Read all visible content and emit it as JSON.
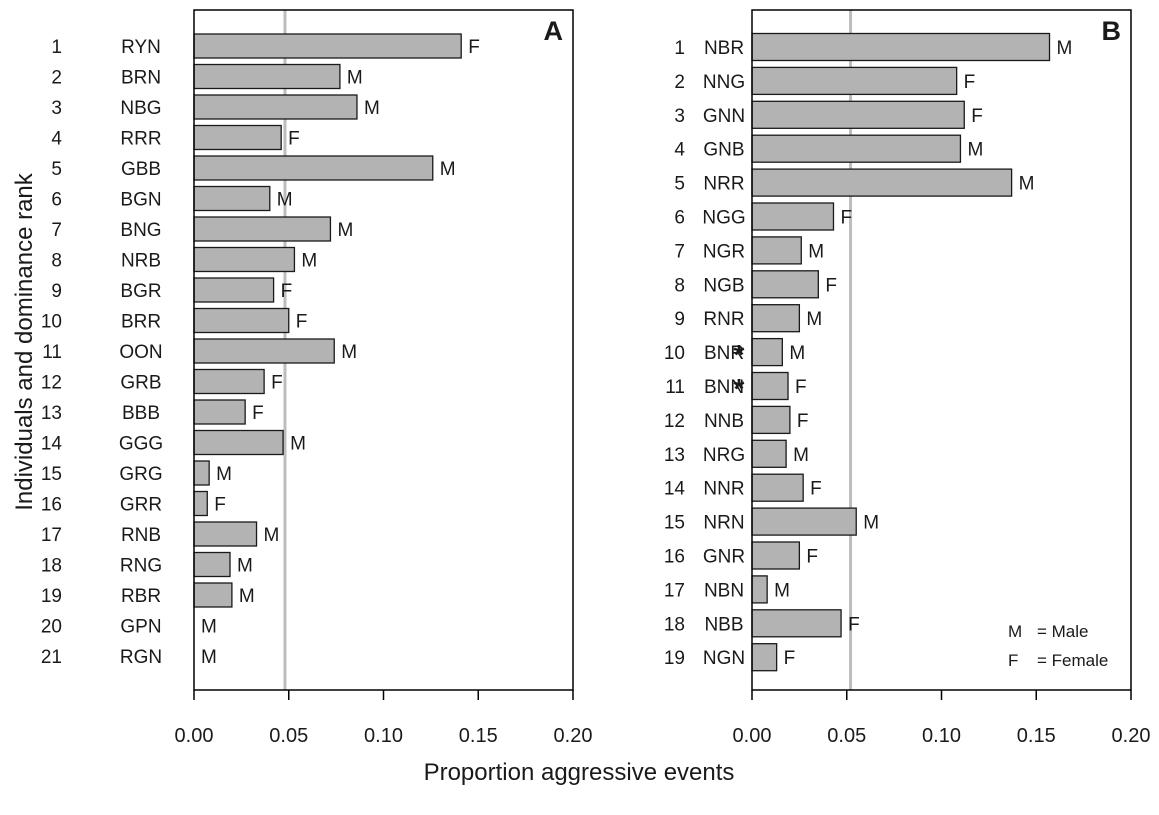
{
  "figure": {
    "ylabel": "Individuals and dominance rank",
    "xlabel": "Proportion aggressive events"
  },
  "colors": {
    "bar_fill": "#b3b3b3",
    "bar_stroke": "#1a1a1a",
    "reference_line": "#bdbdbd",
    "axis": "#000000"
  },
  "chart_data": [
    {
      "type": "bar",
      "orientation": "horizontal",
      "panel_label": "A",
      "xlim": [
        0,
        0.2
      ],
      "xticks": [
        "0.00",
        "0.05",
        "0.10",
        "0.15",
        "0.20"
      ],
      "grid": false,
      "reference_line": 0.048,
      "categories": [
        "1",
        "2",
        "3",
        "4",
        "5",
        "6",
        "7",
        "8",
        "9",
        "10",
        "11",
        "12",
        "13",
        "14",
        "15",
        "16",
        "17",
        "18",
        "19",
        "20",
        "21"
      ],
      "ids": [
        "RYN",
        "BRN",
        "NBG",
        "RRR",
        "GBB",
        "BGN",
        "BNG",
        "NRB",
        "BGR",
        "BRR",
        "OON",
        "GRB",
        "BBB",
        "GGG",
        "GRG",
        "GRR",
        "RNB",
        "RNG",
        "RBR",
        "GPN",
        "RGN"
      ],
      "values": [
        0.141,
        0.077,
        0.086,
        0.046,
        0.126,
        0.04,
        0.072,
        0.053,
        0.042,
        0.05,
        0.074,
        0.037,
        0.027,
        0.047,
        0.008,
        0.007,
        0.033,
        0.019,
        0.02,
        0.0,
        0.0
      ],
      "sex": [
        "F",
        "M",
        "M",
        "F",
        "M",
        "M",
        "M",
        "M",
        "F",
        "F",
        "M",
        "F",
        "F",
        "M",
        "M",
        "F",
        "M",
        "M",
        "M",
        "M",
        "M"
      ],
      "stars": [
        false,
        false,
        false,
        false,
        false,
        false,
        false,
        false,
        false,
        false,
        false,
        false,
        false,
        false,
        false,
        false,
        false,
        false,
        false,
        false,
        false
      ]
    },
    {
      "type": "bar",
      "orientation": "horizontal",
      "panel_label": "B",
      "xlim": [
        0,
        0.2
      ],
      "xticks": [
        "0.00",
        "0.05",
        "0.10",
        "0.15",
        "0.20"
      ],
      "grid": false,
      "reference_line": 0.052,
      "categories": [
        "1",
        "2",
        "3",
        "4",
        "5",
        "6",
        "7",
        "8",
        "9",
        "10",
        "11",
        "12",
        "13",
        "14",
        "15",
        "16",
        "17",
        "18",
        "19"
      ],
      "ids": [
        "NBR",
        "NNG",
        "GNN",
        "GNB",
        "NRR",
        "NGG",
        "NGR",
        "NGB",
        "RNR",
        "BNR",
        "BNN",
        "NNB",
        "NRG",
        "NNR",
        "NRN",
        "GNR",
        "NBN",
        "NBB",
        "NGN"
      ],
      "values": [
        0.157,
        0.108,
        0.112,
        0.11,
        0.137,
        0.043,
        0.026,
        0.035,
        0.025,
        0.016,
        0.019,
        0.02,
        0.018,
        0.027,
        0.055,
        0.025,
        0.008,
        0.047,
        0.013
      ],
      "sex": [
        "M",
        "F",
        "F",
        "M",
        "M",
        "F",
        "M",
        "F",
        "M",
        "M",
        "F",
        "F",
        "M",
        "F",
        "M",
        "F",
        "M",
        "F",
        "F"
      ],
      "stars": [
        false,
        false,
        false,
        false,
        false,
        false,
        false,
        false,
        false,
        true,
        true,
        false,
        false,
        false,
        false,
        false,
        false,
        false,
        false
      ],
      "star_symbol": "*",
      "legend": {
        "position": "bottom-right",
        "entries": [
          {
            "code": "M",
            "text": "= Male"
          },
          {
            "code": "F",
            "text": "= Female"
          }
        ]
      }
    }
  ]
}
